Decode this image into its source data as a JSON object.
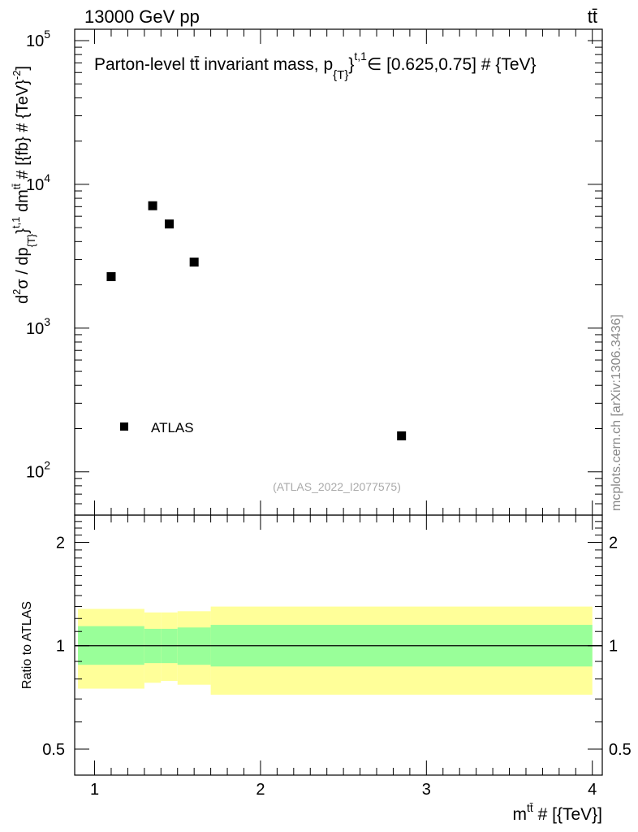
{
  "header": {
    "energy_label": "13000 GeV pp",
    "process_label": "tt̄",
    "watermark": "mcplots.cern.ch [arXiv:1306.3436]"
  },
  "chart_data": [
    {
      "type": "scatter",
      "title_parts": [
        "Parton-level t",
        "t̄",
        " invariant mass, p",
        "{T}",
        "}",
        "t,1",
        "∈ [0.625,0.75] # {TeV}"
      ],
      "ylabel_parts": [
        "d",
        "2",
        "σ / dp",
        "{T}",
        "}",
        "t,1",
        " dm",
        "tt̄",
        " # [{fb} # {TeV}",
        "-2",
        "]"
      ],
      "analysis_label": "(ATLAS_2022_I2077575)",
      "y_scale": "log",
      "ylim": [
        50,
        120000
      ],
      "xlim": [
        0.88,
        4.06
      ],
      "y_ticks": [
        {
          "base": "10",
          "exp": "2",
          "value": 100
        },
        {
          "base": "10",
          "exp": "3",
          "value": 1000
        },
        {
          "base": "10",
          "exp": "4",
          "value": 10000
        },
        {
          "base": "10",
          "exp": "5",
          "value": 100000
        }
      ],
      "series": [
        {
          "name": "ATLAS",
          "marker": "square",
          "color": "#000000",
          "x": [
            1.1,
            1.35,
            1.45,
            1.6,
            2.85
          ],
          "y": [
            2280,
            7100,
            5300,
            2880,
            178
          ]
        }
      ],
      "legend": {
        "position": "bottom-left",
        "entries": [
          "ATLAS"
        ]
      }
    },
    {
      "type": "area",
      "ylabel": "Ratio to ATLAS",
      "y_scale": "log",
      "ylim": [
        0.42,
        2.4
      ],
      "xlim": [
        0.88,
        4.06
      ],
      "y_ticks": [
        {
          "label": "0.5",
          "value": 0.5
        },
        {
          "label": "1",
          "value": 1
        },
        {
          "label": "2",
          "value": 2
        }
      ],
      "x_ticks": [
        {
          "label": "1",
          "value": 1
        },
        {
          "label": "2",
          "value": 2
        },
        {
          "label": "3",
          "value": 3
        },
        {
          "label": "4",
          "value": 4
        }
      ],
      "xlabel_parts": [
        "m",
        "tt̄",
        " # [{TeV}]"
      ],
      "reference_line": 1,
      "bands": [
        {
          "x_low": 0.9,
          "x_high": 1.3,
          "inner_low": 0.88,
          "inner_high": 1.14,
          "outer_low": 0.75,
          "outer_high": 1.28
        },
        {
          "x_low": 1.3,
          "x_high": 1.4,
          "inner_low": 0.89,
          "inner_high": 1.12,
          "outer_low": 0.78,
          "outer_high": 1.25
        },
        {
          "x_low": 1.4,
          "x_high": 1.5,
          "inner_low": 0.89,
          "inner_high": 1.12,
          "outer_low": 0.79,
          "outer_high": 1.25
        },
        {
          "x_low": 1.5,
          "x_high": 1.7,
          "inner_low": 0.88,
          "inner_high": 1.13,
          "outer_low": 0.77,
          "outer_high": 1.26
        },
        {
          "x_low": 1.7,
          "x_high": 4.0,
          "inner_low": 0.87,
          "inner_high": 1.15,
          "outer_low": 0.72,
          "outer_high": 1.3
        }
      ],
      "colors": {
        "inner_band": "#99ff99",
        "outer_band": "#ffff99"
      }
    }
  ]
}
